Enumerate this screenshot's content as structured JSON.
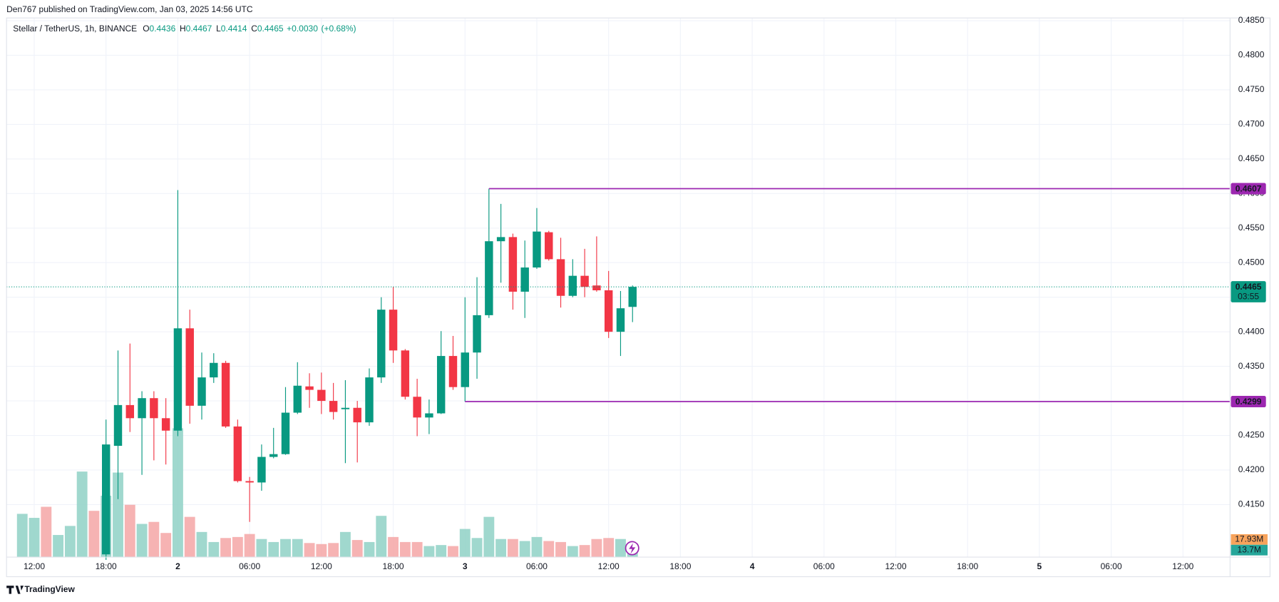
{
  "header": "Den767 published on TradingView.com, Jan 03, 2025 14:56 UTC",
  "footer": "TradingView",
  "chart_data": {
    "type": "candlestick",
    "title": "Stellar / TetherUS, 1h, BINANCE",
    "ohlc_legend": [
      {
        "key": "O",
        "value": 0.4436
      },
      {
        "key": "H",
        "value": 0.4467
      },
      {
        "key": "L",
        "value": 0.4414
      },
      {
        "key": "C",
        "value": 0.4465
      }
    ],
    "change": [
      "+0.0030",
      "(+0.68%)"
    ],
    "categories": [
      null,
      "12:00",
      null,
      null,
      null,
      null,
      null,
      "18:00",
      null,
      null,
      null,
      null,
      null,
      "2",
      null,
      null,
      null,
      null,
      null,
      "06:00",
      null,
      null,
      null,
      null,
      null,
      "12:00",
      null,
      null,
      null,
      null,
      null,
      "18:00",
      null,
      null,
      null,
      null,
      null,
      "3",
      null,
      null,
      null,
      null,
      null,
      "06:00",
      null,
      null,
      null,
      null,
      null,
      "12:00",
      null,
      null,
      null,
      null,
      null,
      "18:00",
      null,
      null,
      null,
      null,
      null,
      "4",
      null,
      null,
      null,
      null,
      null,
      "06:00",
      null,
      null,
      null,
      null,
      null,
      "12:00",
      null,
      null,
      null,
      null,
      null,
      "18:00",
      null,
      null,
      null,
      null,
      null,
      "5",
      null,
      null,
      null,
      null,
      null,
      "06:00",
      null,
      null,
      null,
      null,
      null,
      "12:00"
    ],
    "open": [
      null,
      null,
      null,
      null,
      null,
      null,
      null,
      0.4078,
      0.4235,
      0.4294,
      0.4275,
      0.4304,
      0.4275,
      0.4257,
      0.4405,
      0.4293,
      0.4334,
      0.4355,
      0.4263,
      0.4184,
      0.4182,
      0.4219,
      0.4223,
      0.4283,
      0.4321,
      0.4316,
      0.43,
      0.4288,
      0.429,
      0.4269,
      0.4334,
      0.4432,
      0.4373,
      0.4306,
      0.4276,
      0.4282,
      0.4365,
      0.432,
      0.437,
      0.4424,
      0.4531,
      0.4537,
      0.4458,
      0.4493,
      0.4544,
      0.4505,
      0.4452,
      0.4481,
      0.4467,
      0.446,
      0.44,
      0.4436,
      null,
      null,
      null,
      null,
      null,
      null,
      null,
      null,
      null,
      null,
      null,
      null,
      null,
      null,
      null,
      null,
      null,
      null,
      null,
      null,
      null,
      null,
      null,
      null,
      null,
      null,
      null,
      null,
      null,
      null,
      null,
      null,
      null,
      null,
      null,
      null,
      null,
      null,
      null,
      null,
      null,
      null,
      null,
      null,
      null,
      null
    ],
    "high": [
      null,
      null,
      null,
      null,
      null,
      null,
      null,
      0.4273,
      0.4373,
      0.4383,
      0.4314,
      0.4314,
      0.4304,
      0.4605,
      0.4432,
      0.437,
      0.4369,
      0.4358,
      0.4273,
      0.419,
      0.4237,
      0.4261,
      0.432,
      0.4356,
      0.434,
      0.4341,
      0.4326,
      0.433,
      0.43,
      0.4347,
      0.445,
      0.4465,
      0.4375,
      0.4332,
      0.4302,
      0.4401,
      0.4394,
      0.445,
      0.4479,
      0.4607,
      0.4585,
      0.4542,
      0.4532,
      0.4579,
      0.4546,
      0.4536,
      0.4505,
      0.452,
      0.4538,
      0.4488,
      0.4459,
      0.4467,
      null,
      null,
      null,
      null,
      null,
      null,
      null,
      null,
      null,
      null,
      null,
      null,
      null,
      null,
      null,
      null,
      null,
      null,
      null,
      null,
      null,
      null,
      null,
      null,
      null,
      null,
      null,
      null,
      null,
      null,
      null,
      null,
      null,
      null,
      null,
      null,
      null,
      null,
      null,
      null,
      null,
      null,
      null,
      null,
      null,
      null
    ],
    "low": [
      null,
      null,
      null,
      null,
      null,
      null,
      null,
      0.407,
      0.4158,
      0.4255,
      0.4193,
      0.4214,
      0.4208,
      0.4249,
      0.4267,
      0.4273,
      0.4326,
      0.4261,
      0.4182,
      0.4125,
      0.417,
      0.4217,
      0.4222,
      0.4281,
      0.429,
      0.4281,
      0.4273,
      0.421,
      0.4211,
      0.4264,
      0.4326,
      0.4355,
      0.4302,
      0.4249,
      0.4252,
      0.4281,
      0.4316,
      0.4299,
      0.4332,
      0.442,
      0.4471,
      0.4432,
      0.442,
      0.4491,
      0.4503,
      0.4435,
      0.445,
      0.445,
      0.4458,
      0.4391,
      0.4365,
      0.4414,
      null,
      null,
      null,
      null,
      null,
      null,
      null,
      null,
      null,
      null,
      null,
      null,
      null,
      null,
      null,
      null,
      null,
      null,
      null,
      null,
      null,
      null,
      null,
      null,
      null,
      null,
      null,
      null,
      null,
      null,
      null,
      null,
      null,
      null,
      null,
      null,
      null,
      null,
      null,
      null,
      null,
      null,
      null,
      null,
      null,
      null
    ],
    "close": [
      null,
      null,
      null,
      null,
      null,
      null,
      null,
      0.4237,
      0.4294,
      0.4275,
      0.4304,
      0.4275,
      0.4257,
      0.4405,
      0.4293,
      0.4334,
      0.4355,
      0.4263,
      0.4184,
      0.4182,
      0.4219,
      0.4223,
      0.4283,
      0.4322,
      0.4316,
      0.43,
      0.4284,
      0.429,
      0.4269,
      0.4334,
      0.4432,
      0.4373,
      0.4306,
      0.4276,
      0.4282,
      0.4365,
      0.432,
      0.437,
      0.4424,
      0.4531,
      0.4537,
      0.4458,
      0.4493,
      0.4545,
      0.4505,
      0.4452,
      0.4481,
      0.4465,
      0.446,
      0.44,
      0.4434,
      0.4465,
      null,
      null,
      null,
      null,
      null,
      null,
      null,
      null,
      null,
      null,
      null,
      null,
      null,
      null,
      null,
      null,
      null,
      null,
      null,
      null,
      null,
      null,
      null,
      null,
      null,
      null,
      null,
      null,
      null,
      null,
      null,
      null,
      null,
      null,
      null,
      null,
      null,
      null,
      null,
      null,
      null,
      null,
      null,
      null,
      null,
      null
    ],
    "up_color": "#089981",
    "down_color": "#f23645",
    "volume": {
      "values": [
        43,
        39,
        50,
        22,
        31,
        85,
        46,
        61,
        84,
        52,
        33,
        35,
        24,
        128,
        40,
        25,
        15,
        19,
        20,
        23,
        18,
        15,
        18,
        18,
        14,
        13,
        14,
        25,
        17,
        15,
        41,
        20,
        15,
        15,
        11,
        12,
        11,
        28,
        19,
        40,
        18,
        18,
        16,
        20,
        16,
        15,
        11,
        12,
        18,
        19,
        18,
        13.7,
        null,
        null,
        null,
        null,
        null,
        null,
        null,
        null,
        null,
        null,
        null,
        null,
        null,
        null,
        null,
        null,
        null,
        null,
        null,
        null,
        null,
        null,
        null,
        null,
        null,
        null,
        null,
        null,
        null,
        null,
        null,
        null,
        null,
        null,
        null,
        null,
        null,
        null,
        null,
        null,
        null,
        null,
        null,
        null,
        null,
        null
      ],
      "colors": [
        "#8fd1c6",
        "#8fd1c6",
        "#f5a6a6",
        "#8fd1c6",
        "#8fd1c6",
        "#8fd1c6",
        "#f5a6a6",
        "#8fd1c6",
        "#8fd1c6",
        "#f5a6a6",
        "#8fd1c6",
        "#f5a6a6",
        "#f5a6a6",
        "#8fd1c6",
        "#f5a6a6",
        "#8fd1c6",
        "#8fd1c6",
        "#f5a6a6",
        "#f5a6a6",
        "#f5a6a6",
        "#8fd1c6",
        "#8fd1c6",
        "#8fd1c6",
        "#8fd1c6",
        "#f5a6a6",
        "#f5a6a6",
        "#f5a6a6",
        "#8fd1c6",
        "#f5a6a6",
        "#8fd1c6",
        "#8fd1c6",
        "#f5a6a6",
        "#f5a6a6",
        "#f5a6a6",
        "#8fd1c6",
        "#8fd1c6",
        "#f5a6a6",
        "#8fd1c6",
        "#8fd1c6",
        "#8fd1c6",
        "#8fd1c6",
        "#f5a6a6",
        "#8fd1c6",
        "#8fd1c6",
        "#f5a6a6",
        "#f5a6a6",
        "#8fd1c6",
        "#f5a6a6",
        "#f5a6a6",
        "#f5a6a6",
        "#8fd1c6",
        "#8fd1c6",
        null,
        null,
        null,
        null,
        null,
        null,
        null,
        null,
        null,
        null,
        null,
        null,
        null,
        null,
        null,
        null,
        null,
        null,
        null,
        null,
        null,
        null,
        null,
        null,
        null,
        null,
        null,
        null,
        null,
        null,
        null,
        null,
        null,
        null,
        null,
        null,
        null,
        null,
        null,
        null,
        null,
        null,
        null,
        null,
        null,
        null
      ],
      "value_labels": [
        null,
        null,
        null,
        null,
        null,
        null,
        null,
        null,
        null,
        null,
        null,
        null,
        null,
        null,
        null,
        null,
        null,
        null,
        null,
        null,
        null,
        null,
        null,
        null,
        null,
        null,
        null,
        null,
        null,
        null,
        null,
        null,
        null,
        null,
        null,
        null,
        null,
        null,
        null,
        null,
        null,
        null,
        null,
        null,
        null,
        null,
        null,
        null,
        null,
        null,
        null,
        "13.7M",
        null,
        null,
        null,
        null,
        null,
        null,
        null,
        null,
        null,
        null,
        null,
        null,
        null,
        null,
        null,
        null,
        null,
        null,
        null,
        null,
        null,
        null,
        null,
        null,
        null,
        null,
        null,
        null,
        null,
        null,
        null,
        null,
        null,
        null,
        null,
        null,
        null,
        null,
        null,
        null,
        null,
        null,
        null,
        null,
        null,
        null
      ],
      "label_color": "#26a69a"
    },
    "volume_ma": {
      "value": 17.93,
      "label": "17.93M",
      "color": "#f7a35c"
    },
    "ylim": [
      0.4074,
      0.4854
    ],
    "yticks": [
      {
        "value": 0.415,
        "label": "0.4150"
      },
      {
        "value": 0.42,
        "label": "0.4200"
      },
      {
        "value": 0.425,
        "label": "0.4250"
      },
      {
        "value": 0.43,
        "label": "0.4300"
      },
      {
        "value": 0.435,
        "label": "0.4350"
      },
      {
        "value": 0.44,
        "label": "0.4400"
      },
      {
        "value": 0.445,
        "label": "0.4450"
      },
      {
        "value": 0.45,
        "label": "0.4500"
      },
      {
        "value": 0.455,
        "label": "0.4550"
      },
      {
        "value": 0.46,
        "label": "0.4600"
      },
      {
        "value": 0.465,
        "label": "0.4650"
      },
      {
        "value": 0.47,
        "label": "0.4700"
      },
      {
        "value": 0.475,
        "label": "0.4750"
      },
      {
        "value": 0.48,
        "label": "0.4800"
      },
      {
        "value": 0.485,
        "label": "0.4850"
      }
    ],
    "grid": true,
    "levels": [
      {
        "value": 0.4607,
        "label": "0.4607"
      },
      {
        "value": 0.4299,
        "label": "0.4299"
      }
    ],
    "level_color": "#9c27b0",
    "last_price": {
      "value": 0.4465,
      "label": "0.4465",
      "countdown": "03:55"
    }
  }
}
